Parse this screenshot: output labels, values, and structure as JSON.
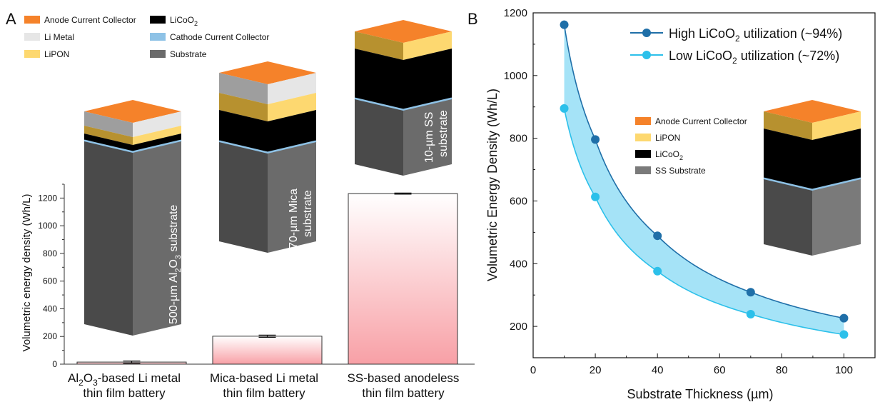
{
  "panel_a": {
    "letter": "A",
    "legend": [
      {
        "label": "Anode Current Collector",
        "color": "#f5822a"
      },
      {
        "label": "Li Metal",
        "color": "#e6e6e6"
      },
      {
        "label": "LiPON",
        "color": "#fdd870"
      },
      {
        "label": "LiCoO",
        "sub": "2",
        "color": "#000000"
      },
      {
        "label": "Cathode Current Collector",
        "color": "#8ec2e6"
      },
      {
        "label": "Substrate",
        "color": "#6b6b6b"
      }
    ],
    "stack_labels": [
      {
        "pre": "500-µm Al",
        "s1": "2",
        "mid": "O",
        "s2": "3",
        "post": " substrate"
      },
      {
        "line1": "70-µm Mica",
        "line2": "substrate"
      },
      {
        "line1": "10-µm SS",
        "line2": "substrate"
      }
    ]
  },
  "panel_b": {
    "letter": "B",
    "legend": [
      {
        "pre": "High LiCoO",
        "sub": "2",
        "post": " utilization (~94%)",
        "color": "#1f6fa8"
      },
      {
        "pre": "Low LiCoO",
        "sub": "2",
        "post": " utilization (~72%)",
        "color": "#2cc0ea"
      }
    ],
    "stack_legend": [
      {
        "label": "Anode Current Collector",
        "color": "#f5822a"
      },
      {
        "label": "LiPON",
        "color": "#fdd870"
      },
      {
        "label": "LiCoO",
        "sub": "2",
        "color": "#000000"
      },
      {
        "label": "SS Substrate",
        "color": "#7a7a7a"
      }
    ]
  },
  "chart_data": [
    {
      "type": "bar",
      "panel": "A",
      "ylabel": "Volumetric energy density (Wh/L)",
      "ylim": [
        0,
        1300
      ],
      "yticks": [
        0,
        200,
        400,
        600,
        800,
        1000,
        1200
      ],
      "categories": [
        {
          "l1a": "Al",
          "s1": "2",
          "l1b": "O",
          "s2": "3",
          "l1c": "-based Li metal",
          "l2": "thin film battery"
        },
        {
          "l1a": "Mica-based Li metal",
          "l2": "thin film battery"
        },
        {
          "l1a": "SS-based anodeless",
          "l2": "thin film battery"
        }
      ],
      "values": [
        15,
        202,
        1232
      ],
      "errors": [
        8,
        8,
        4
      ]
    },
    {
      "type": "line",
      "panel": "B",
      "xlabel": "Substrate Thickness (µm)",
      "ylabel": "Volumetric Energy Density (Wh/L)",
      "xlim": [
        0,
        110
      ],
      "ylim": [
        100,
        1200
      ],
      "xticks": [
        0,
        20,
        40,
        60,
        80,
        100
      ],
      "yticks": [
        200,
        400,
        600,
        800,
        1000,
        1200
      ],
      "series": [
        {
          "name": "High LiCoO2 utilization (~94%)",
          "x": [
            10,
            20,
            40,
            70,
            100
          ],
          "y": [
            1162,
            796,
            489,
            309,
            226
          ]
        },
        {
          "name": "Low LiCoO2 utilization (~72%)",
          "x": [
            10,
            20,
            40,
            70,
            100
          ],
          "y": [
            895,
            613,
            376,
            239,
            174
          ]
        }
      ],
      "shaded_between_series": true
    }
  ]
}
